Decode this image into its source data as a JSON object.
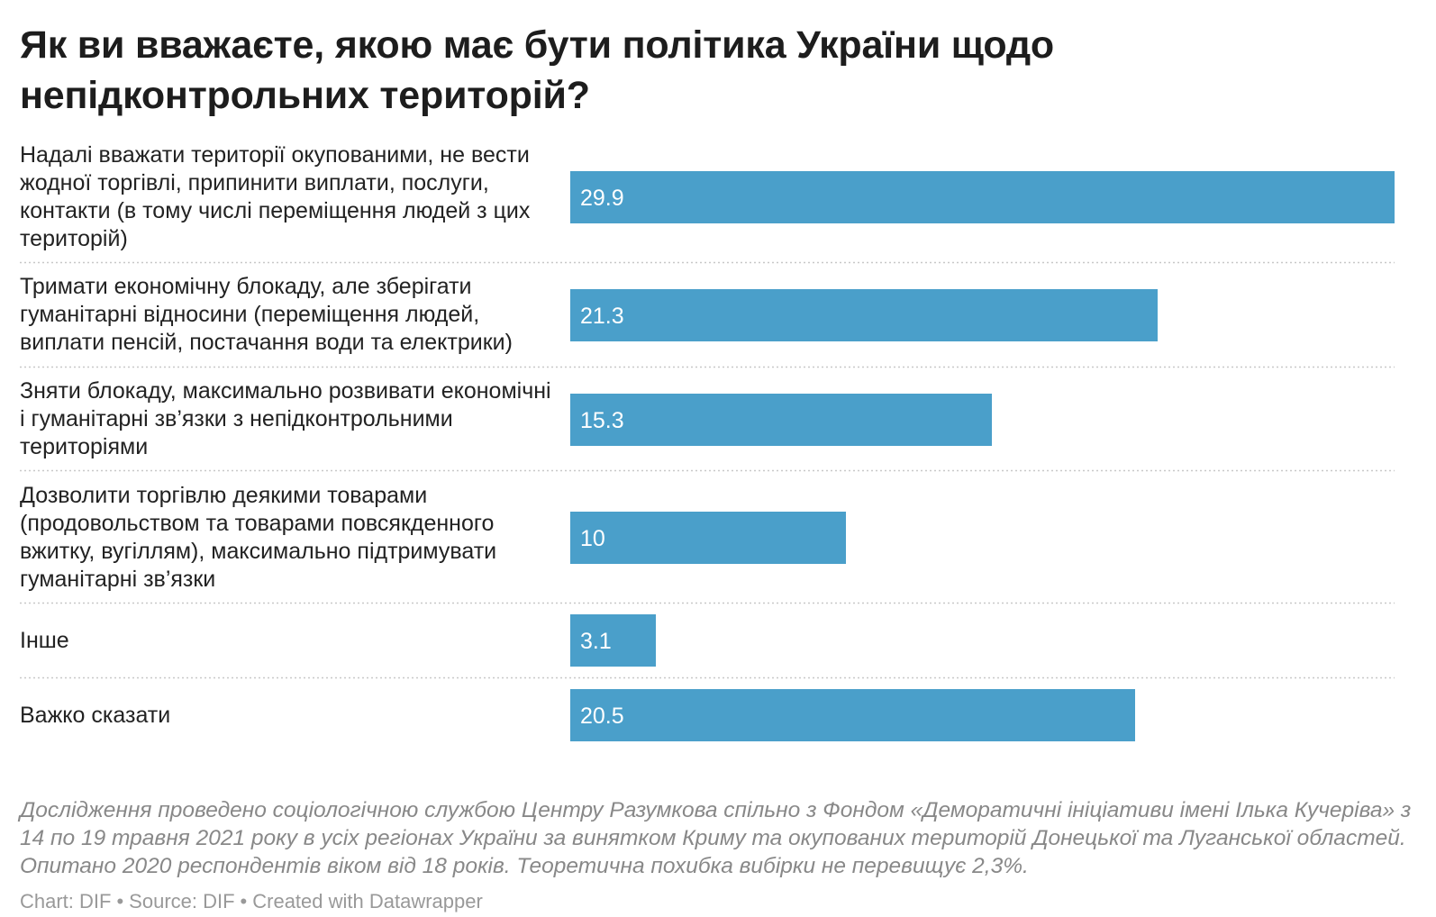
{
  "title": "Як ви вважаєте, якою має бути політика України щодо непідконтрольних територій?",
  "chart_data": {
    "type": "bar",
    "orientation": "horizontal",
    "categories": [
      "Надалі вважати території окупованими, не вести жодної торгівлі, припинити виплати, послуги, контакти (в тому числі переміщення людей з цих територій)",
      "Тримати економічну блокаду, але зберігати гуманітарні відносини (переміщення людей, виплати пенсій, постачання води та електрики)",
      "Зняти блокаду, максимально розвивати економічні і гуманітарні зв’язки з непідконтрольними територіями",
      "Дозволити торгівлю деякими товарами (продовольством та товарами повсякденного вжитку, вугіллям), максимально підтримувати гуманітарні зв’язки",
      "Інше",
      "Важко сказати"
    ],
    "values": [
      29.9,
      21.3,
      15.3,
      10,
      3.1,
      20.5
    ],
    "value_labels": [
      "29.9",
      "21.3",
      "15.3",
      "10",
      "3.1",
      "20.5"
    ],
    "xlim": [
      0,
      29.9
    ],
    "bar_color": "#4a9fca",
    "label_color": "#ffffff",
    "grid": false,
    "separators": "dotted"
  },
  "notes": "Дослідження проведено соціологічною службою Центру Разумкова спільно з Фондом «Деморатичні ініціативи імені Ілька Кучеріва» з 14 по 19 травня 2021 року в усіх регіонах України за винятком Криму та окупованих територій Донецької та Луганської областей. Опитано 2020 респондентів віком від 18 років. Теоретична похибка вибірки не перевищує 2,3%.",
  "footer": {
    "chart": "Chart: DIF",
    "source": "Source: DIF",
    "created": "Created with Datawrapper",
    "separator": "•"
  }
}
